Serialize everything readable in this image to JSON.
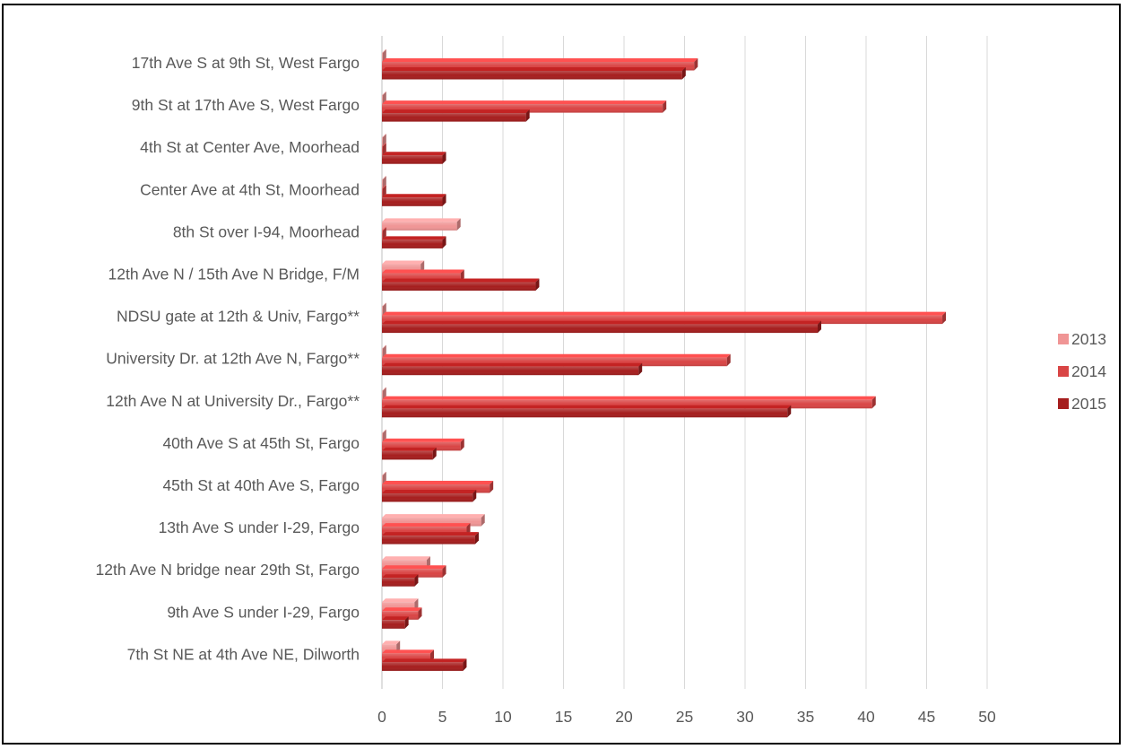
{
  "header": {
    "title_fragment": ""
  },
  "chart_data": {
    "type": "bar",
    "orientation": "horizontal",
    "title": "",
    "xlabel": "",
    "ylabel": "",
    "xlim": [
      0,
      50
    ],
    "xticks": [
      0,
      5,
      10,
      15,
      20,
      25,
      30,
      35,
      40,
      45,
      50
    ],
    "grid": "vertical",
    "legend_position": "right",
    "categories": [
      "17th Ave S at 9th St, West Fargo",
      "9th St at 17th Ave S, West Fargo",
      "4th St at Center Ave, Moorhead",
      "Center Ave at 4th St, Moorhead",
      "8th St over I-94, Moorhead",
      "12th Ave N / 15th Ave N Bridge, F/M",
      "NDSU gate at 12th & Univ, Fargo**",
      "University Dr. at 12th Ave N, Fargo**",
      "12th Ave N at University Dr., Fargo**",
      "40th Ave S at 45th St, Fargo",
      "45th St at 40th Ave S, Fargo",
      "13th Ave S under I-29, Fargo",
      "12th Ave N bridge near 29th St, Fargo",
      "9th Ave S under I-29, Fargo",
      "7th  St NE at 4th Ave NE, Dilworth"
    ],
    "series": [
      {
        "name": "2013",
        "color": "#F09595",
        "values": [
          0,
          0,
          0,
          0,
          6.2,
          3.2,
          0,
          0,
          0,
          0,
          0,
          8.2,
          3.7,
          2.7,
          1.2
        ]
      },
      {
        "name": "2014",
        "color": "#D94545",
        "values": [
          25.8,
          23.2,
          0,
          0,
          0,
          6.5,
          46.3,
          28.5,
          40.5,
          6.5,
          8.9,
          7.0,
          5.0,
          3.0,
          4.0
        ]
      },
      {
        "name": "2015",
        "color": "#A61E1E",
        "values": [
          24.8,
          11.9,
          5.0,
          5.0,
          5.0,
          12.7,
          36.0,
          21.2,
          33.5,
          4.2,
          7.5,
          7.7,
          2.7,
          1.9,
          6.7
        ]
      }
    ]
  }
}
